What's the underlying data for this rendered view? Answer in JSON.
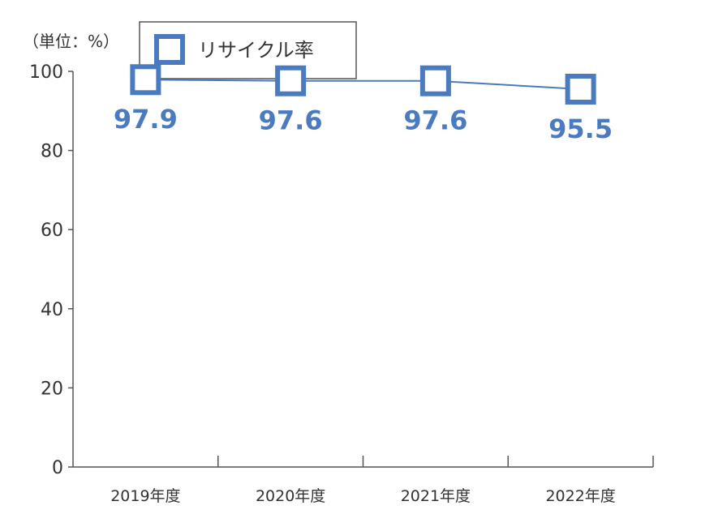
{
  "chart_data": {
    "type": "line",
    "unit_label": "（単位：%）",
    "categories": [
      "2019年度",
      "2020年度",
      "2021年度",
      "2022年度"
    ],
    "series": [
      {
        "name": "リサイクル率",
        "values": [
          97.9,
          97.6,
          97.6,
          95.5
        ],
        "data_labels": [
          "97.9",
          "97.6",
          "97.6",
          "95.5"
        ],
        "marker": "open-square",
        "color": "#4a7bc0"
      }
    ],
    "yticks": [
      "0",
      "20",
      "40",
      "60",
      "80",
      "100"
    ],
    "ylim": [
      0,
      100
    ],
    "grid": false,
    "legend_position": "top-left"
  }
}
